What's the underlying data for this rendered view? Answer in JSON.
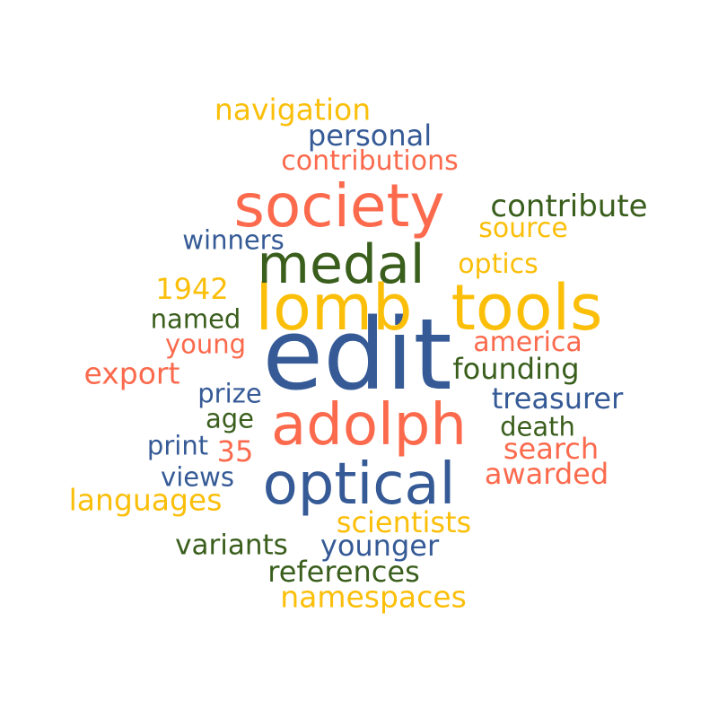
{
  "palette": {
    "yellow": "#fbbf0a",
    "orange": "#fb6a4d",
    "green": "#3a5e1c",
    "blue": "#355a96"
  },
  "words": [
    {
      "text": "edit",
      "weight": 100,
      "color": "blue"
    },
    {
      "text": "lomb",
      "weight": 74,
      "color": "yellow"
    },
    {
      "text": "tools",
      "weight": 74,
      "color": "yellow"
    },
    {
      "text": "society",
      "weight": 68,
      "color": "orange"
    },
    {
      "text": "adolph",
      "weight": 66,
      "color": "orange"
    },
    {
      "text": "optical",
      "weight": 66,
      "color": "blue"
    },
    {
      "text": "medal",
      "weight": 64,
      "color": "green"
    },
    {
      "text": "contribute",
      "weight": 36,
      "color": "green"
    },
    {
      "text": "contributions",
      "weight": 33,
      "color": "orange"
    },
    {
      "text": "navigation",
      "weight": 34,
      "color": "yellow"
    },
    {
      "text": "personal",
      "weight": 33,
      "color": "blue"
    },
    {
      "text": "source",
      "weight": 31,
      "color": "yellow"
    },
    {
      "text": "winners",
      "weight": 30,
      "color": "blue"
    },
    {
      "text": "optics",
      "weight": 31,
      "color": "yellow"
    },
    {
      "text": "1942",
      "weight": 33,
      "color": "yellow"
    },
    {
      "text": "named",
      "weight": 30,
      "color": "green"
    },
    {
      "text": "young",
      "weight": 30,
      "color": "orange"
    },
    {
      "text": "america",
      "weight": 31,
      "color": "orange"
    },
    {
      "text": "export",
      "weight": 34,
      "color": "orange"
    },
    {
      "text": "founding",
      "weight": 33,
      "color": "green"
    },
    {
      "text": "prize",
      "weight": 30,
      "color": "blue"
    },
    {
      "text": "treasurer",
      "weight": 33,
      "color": "blue"
    },
    {
      "text": "age",
      "weight": 30,
      "color": "green"
    },
    {
      "text": "death",
      "weight": 30,
      "color": "green"
    },
    {
      "text": "print",
      "weight": 30,
      "color": "blue"
    },
    {
      "text": "35",
      "weight": 33,
      "color": "orange"
    },
    {
      "text": "search",
      "weight": 33,
      "color": "orange"
    },
    {
      "text": "views",
      "weight": 30,
      "color": "blue"
    },
    {
      "text": "awarded",
      "weight": 33,
      "color": "orange"
    },
    {
      "text": "languages",
      "weight": 34,
      "color": "yellow"
    },
    {
      "text": "scientists",
      "weight": 33,
      "color": "yellow"
    },
    {
      "text": "variants",
      "weight": 32,
      "color": "green"
    },
    {
      "text": "younger",
      "weight": 33,
      "color": "blue"
    },
    {
      "text": "references",
      "weight": 33,
      "color": "green"
    },
    {
      "text": "namespaces",
      "weight": 34,
      "color": "yellow"
    }
  ]
}
